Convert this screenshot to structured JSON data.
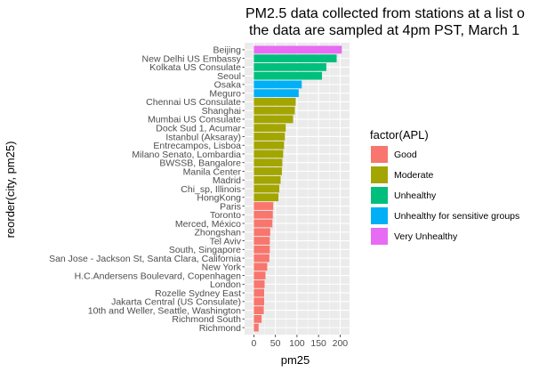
{
  "chart_data": {
    "type": "bar",
    "orientation": "horizontal",
    "title_lines": [
      "PM2.5 data collected from stations at a list o",
      "the data are sampled at 4pm PST, March 1"
    ],
    "xlabel": "pm25",
    "ylabel": "reorder(city, pm25)",
    "xlim": [
      0,
      215
    ],
    "xticks": [
      0,
      50,
      100,
      150,
      200
    ],
    "grid": true,
    "legend_placement": "right",
    "legend": {
      "title": "factor(APL)",
      "entries": [
        {
          "label": "Good",
          "color": "#F8766D"
        },
        {
          "label": "Moderate",
          "color": "#A3A500"
        },
        {
          "label": "Unhealthy",
          "color": "#00BF7D"
        },
        {
          "label": "Unhealthy for sensitive groups",
          "color": "#00B0F6"
        },
        {
          "label": "Very Unhealthy",
          "color": "#E76BF3"
        }
      ]
    },
    "categories": [
      "Beijing",
      "New Delhi US Embassy",
      "Kolkata US Consulate",
      "Seoul",
      "Osaka",
      "Meguro",
      "Chennai US Consulate",
      "Shanghai",
      "Mumbai US Consulate",
      "Dock Sud 1, Acumar",
      "Istanbul (Aksaray)",
      "Entrecampos, Lisboa",
      "Milano Senato, Lombardia",
      "BWSSB, Bangalore",
      "Manila Center",
      "Madrid",
      "Chi_sp, Illinois",
      "HongKong",
      "Paris",
      "Toronto",
      "Merced, México",
      "Zhongshan",
      "Tel Aviv",
      "South, Singapore",
      "San Jose - Jackson St, Santa Clara, California",
      "New York",
      "H.C.Andersens Boulevard, Copenhagen",
      "London",
      "Rozelle Sydney East",
      "Jakarta Central (US Consulate)",
      "10th and Weller, Seattle, Washington",
      "Richmond South",
      "Richmond"
    ],
    "values": [
      204,
      192,
      168,
      158,
      111,
      104,
      97,
      95,
      91,
      74,
      72,
      70,
      68,
      66,
      65,
      62,
      59,
      57,
      45,
      44,
      43,
      38,
      37,
      37,
      36,
      31,
      27,
      25,
      24,
      24,
      23,
      18,
      11
    ],
    "apl_group": [
      "Very Unhealthy",
      "Unhealthy",
      "Unhealthy",
      "Unhealthy",
      "Unhealthy for sensitive groups",
      "Unhealthy for sensitive groups",
      "Moderate",
      "Moderate",
      "Moderate",
      "Moderate",
      "Moderate",
      "Moderate",
      "Moderate",
      "Moderate",
      "Moderate",
      "Moderate",
      "Moderate",
      "Moderate",
      "Good",
      "Good",
      "Good",
      "Good",
      "Good",
      "Good",
      "Good",
      "Good",
      "Good",
      "Good",
      "Good",
      "Good",
      "Good",
      "Good",
      "Good"
    ]
  }
}
